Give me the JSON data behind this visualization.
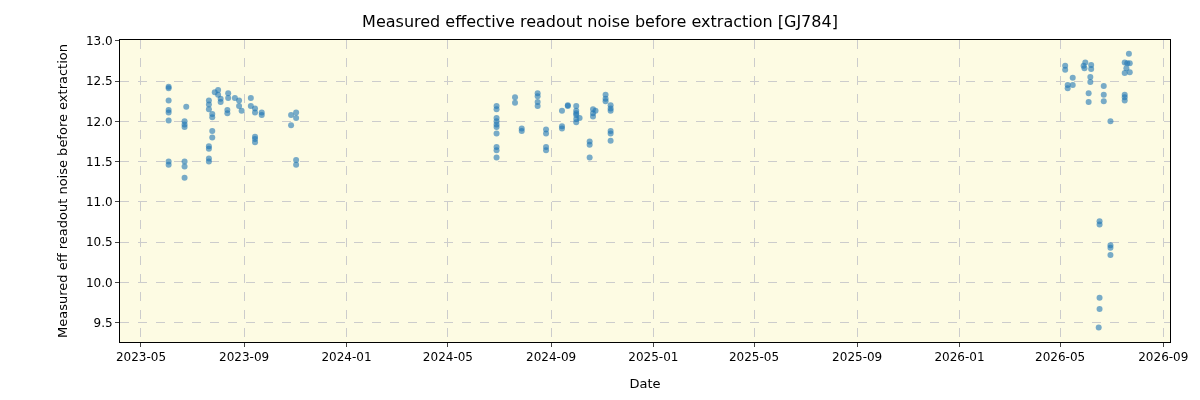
{
  "chart_data": {
    "type": "scatter",
    "title": "Measured effective readout noise before extraction [GJ784]",
    "xlabel": "Date",
    "ylabel": "Measured eff readout noise before extraction",
    "series": [
      {
        "color": "#1f77b4",
        "x": [
          "2023-06-03",
          "2023-06-03",
          "2023-06-03",
          "2023-06-03",
          "2023-06-03",
          "2023-06-03",
          "2023-06-03",
          "2023-06-03",
          "2023-06-22",
          "2023-06-22",
          "2023-06-22",
          "2023-06-22",
          "2023-06-22",
          "2023-06-22",
          "2023-06-24",
          "2023-07-21",
          "2023-07-21",
          "2023-07-21",
          "2023-07-21",
          "2023-07-21",
          "2023-07-21",
          "2023-07-21",
          "2023-07-25",
          "2023-07-25",
          "2023-07-25",
          "2023-07-25",
          "2023-07-28",
          "2023-08-01",
          "2023-08-01",
          "2023-08-04",
          "2023-08-04",
          "2023-08-13",
          "2023-08-13",
          "2023-08-12",
          "2023-08-12",
          "2023-08-21",
          "2023-08-26",
          "2023-08-26",
          "2023-08-29",
          "2023-09-09",
          "2023-09-09",
          "2023-09-14",
          "2023-09-14",
          "2023-09-14",
          "2023-09-14",
          "2023-09-14",
          "2023-09-22",
          "2023-09-22",
          "2023-10-27",
          "2023-10-27",
          "2023-11-02",
          "2023-11-02",
          "2023-11-02",
          "2023-11-02",
          "2024-06-28",
          "2024-06-28",
          "2024-06-28",
          "2024-06-28",
          "2024-06-28",
          "2024-06-28",
          "2024-06-28",
          "2024-06-28",
          "2024-06-28",
          "2024-06-28",
          "2024-07-20",
          "2024-07-20",
          "2024-07-28",
          "2024-07-28",
          "2024-08-16",
          "2024-08-16",
          "2024-08-16",
          "2024-08-16",
          "2024-08-26",
          "2024-08-26",
          "2024-08-26",
          "2024-08-26",
          "2024-09-14",
          "2024-09-14",
          "2024-09-14",
          "2024-09-21",
          "2024-09-21",
          "2024-10-01",
          "2024-10-01",
          "2024-10-01",
          "2024-10-01",
          "2024-10-01",
          "2024-10-01",
          "2024-10-05",
          "2024-10-17",
          "2024-10-17",
          "2024-10-17",
          "2024-10-21",
          "2024-10-21",
          "2024-10-21",
          "2024-10-24",
          "2024-11-05",
          "2024-11-05",
          "2024-11-05",
          "2024-11-11",
          "2024-11-11",
          "2024-11-11",
          "2024-11-11",
          "2024-11-11",
          "2024-11-11",
          "2026-05-07",
          "2026-05-07",
          "2026-05-10",
          "2026-05-10",
          "2026-05-16",
          "2026-05-16",
          "2026-05-29",
          "2026-05-30",
          "2026-05-31",
          "2026-06-07",
          "2026-06-07",
          "2026-06-06",
          "2026-06-06",
          "2026-06-04",
          "2026-06-04",
          "2026-06-22",
          "2026-06-22",
          "2026-06-22",
          "2026-06-30",
          "2026-06-17",
          "2026-06-17",
          "2026-06-30",
          "2026-06-30",
          "2026-06-30",
          "2026-06-17",
          "2026-06-17",
          "2026-06-16",
          "2026-07-17",
          "2026-07-17",
          "2026-07-17",
          "2026-07-22",
          "2026-07-17",
          "2026-07-20",
          "2026-07-23",
          "2026-07-17",
          "2026-07-23",
          "2026-07-19"
        ],
        "values": [
          12.43,
          12.41,
          12.26,
          12.14,
          12.11,
          12.01,
          11.5,
          11.46,
          12.0,
          11.96,
          11.93,
          11.5,
          11.44,
          11.3,
          12.18,
          12.26,
          12.21,
          12.15,
          11.69,
          11.66,
          11.54,
          11.5,
          11.88,
          11.8,
          12.09,
          12.05,
          12.36,
          12.33,
          12.39,
          12.28,
          12.24,
          12.35,
          12.29,
          12.14,
          12.1,
          12.29,
          12.26,
          12.19,
          12.13,
          12.29,
          12.19,
          12.16,
          12.11,
          11.81,
          11.78,
          11.74,
          12.11,
          12.08,
          12.08,
          11.95,
          12.11,
          12.04,
          11.52,
          11.46,
          12.19,
          12.15,
          12.04,
          12.0,
          11.96,
          11.93,
          11.85,
          11.68,
          11.64,
          11.55,
          12.3,
          12.23,
          11.91,
          11.88,
          12.35,
          12.31,
          12.24,
          12.19,
          11.9,
          11.85,
          11.68,
          11.64,
          12.13,
          11.94,
          11.91,
          12.2,
          12.19,
          12.19,
          12.13,
          12.08,
          12.03,
          11.99,
          12.1,
          12.04,
          11.75,
          11.71,
          11.55,
          12.15,
          12.1,
          12.06,
          12.13,
          12.33,
          12.28,
          12.25,
          12.2,
          12.16,
          12.13,
          11.88,
          11.85,
          11.76,
          12.69,
          12.64,
          12.45,
          12.41,
          12.54,
          12.45,
          12.69,
          12.66,
          12.73,
          12.7,
          12.65,
          12.55,
          12.49,
          12.35,
          12.24,
          12.44,
          12.33,
          12.25,
          12.0,
          10.76,
          10.72,
          10.46,
          10.43,
          10.34,
          9.81,
          9.67,
          9.44,
          12.33,
          12.3,
          12.26,
          12.84,
          12.73,
          12.72,
          12.72,
          12.6,
          12.61,
          12.66
        ]
      }
    ],
    "xlim": [
      "2023-04-06",
      "2026-09-09"
    ],
    "ylim": [
      9.26,
      13.01
    ],
    "xticks": [
      {
        "value": "2023-05-01",
        "label": "2023-05"
      },
      {
        "value": "2023-09-01",
        "label": "2023-09"
      },
      {
        "value": "2024-01-01",
        "label": "2024-01"
      },
      {
        "value": "2024-05-01",
        "label": "2024-05"
      },
      {
        "value": "2024-09-01",
        "label": "2024-09"
      },
      {
        "value": "2025-01-01",
        "label": "2025-01"
      },
      {
        "value": "2025-05-01",
        "label": "2025-05"
      },
      {
        "value": "2025-09-01",
        "label": "2025-09"
      },
      {
        "value": "2026-01-01",
        "label": "2026-01"
      },
      {
        "value": "2026-05-01",
        "label": "2026-05"
      },
      {
        "value": "2026-09-01",
        "label": "2026-09"
      }
    ],
    "yticks": [
      {
        "value": 9.5,
        "label": "9.5"
      },
      {
        "value": 10.0,
        "label": "10.0"
      },
      {
        "value": 10.5,
        "label": "10.5"
      },
      {
        "value": 11.0,
        "label": "11.0"
      },
      {
        "value": 11.5,
        "label": "11.5"
      },
      {
        "value": 12.0,
        "label": "12.0"
      },
      {
        "value": 12.5,
        "label": "12.5"
      },
      {
        "value": 13.0,
        "label": "13.0"
      }
    ],
    "grid": true,
    "marker": "circle",
    "legend": false
  }
}
